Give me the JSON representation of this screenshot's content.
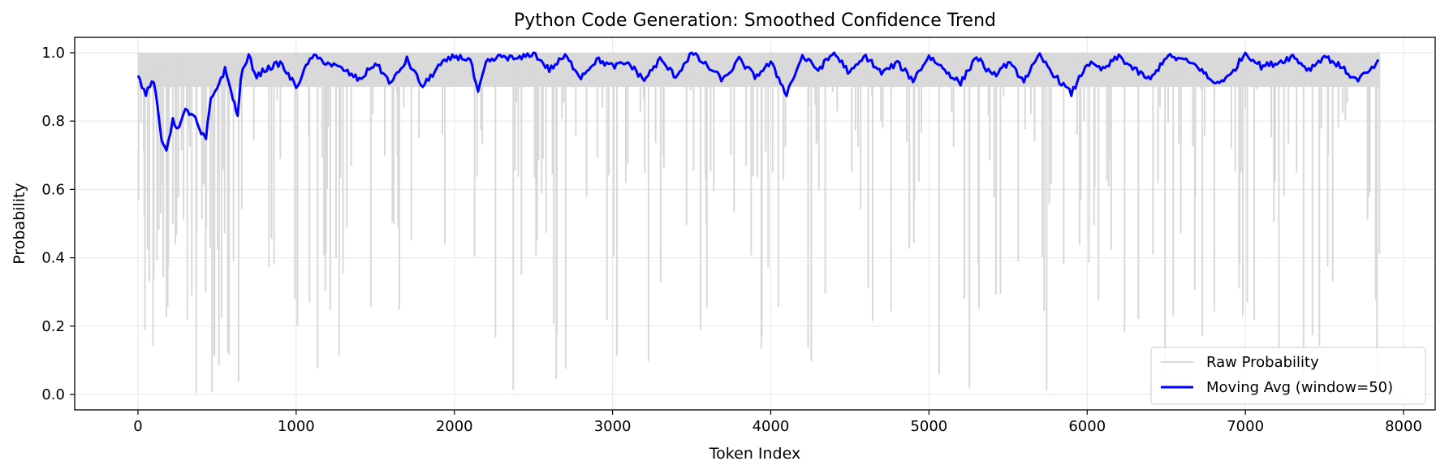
{
  "chart_data": {
    "type": "line",
    "title": "Python Code Generation: Smoothed Confidence Trend",
    "xlabel": "Token Index",
    "ylabel": "Probability",
    "xlim": [
      -400,
      8200
    ],
    "ylim": [
      -0.045,
      1.045
    ],
    "xticks": [
      0,
      1000,
      2000,
      3000,
      4000,
      5000,
      6000,
      7000,
      8000
    ],
    "xtick_labels": [
      "0",
      "1000",
      "2000",
      "3000",
      "4000",
      "5000",
      "6000",
      "7000",
      "8000"
    ],
    "yticks": [
      0.0,
      0.2,
      0.4,
      0.6,
      0.8,
      1.0
    ],
    "ytick_labels": [
      "0.0",
      "0.2",
      "0.4",
      "0.6",
      "0.8",
      "1.0"
    ],
    "grid": true,
    "legend_position": "lower-right",
    "num_tokens": 7850,
    "series": [
      {
        "name": "Raw Probability",
        "color": "#d9d9d9",
        "description_values": "per-token probabilities, mostly near 1.0 with frequent drops toward 0"
      },
      {
        "name": "Moving Avg (window=50)",
        "color": "#0000ff",
        "x": [
          0,
          50,
          100,
          150,
          180,
          220,
          260,
          300,
          350,
          400,
          430,
          460,
          500,
          550,
          600,
          630,
          650,
          700,
          750,
          800,
          900,
          1000,
          1100,
          1200,
          1300,
          1400,
          1500,
          1600,
          1700,
          1800,
          1900,
          2000,
          2100,
          2150,
          2200,
          2300,
          2400,
          2500,
          2600,
          2700,
          2800,
          2900,
          3000,
          3100,
          3200,
          3300,
          3400,
          3500,
          3600,
          3700,
          3800,
          3900,
          4000,
          4100,
          4200,
          4300,
          4400,
          4500,
          4600,
          4700,
          4800,
          4900,
          5000,
          5100,
          5200,
          5300,
          5400,
          5500,
          5600,
          5700,
          5800,
          5900,
          6000,
          6100,
          6200,
          6300,
          6400,
          6500,
          6600,
          6700,
          6800,
          6900,
          7000,
          7100,
          7200,
          7300,
          7400,
          7500,
          7600,
          7700,
          7800,
          7840
        ],
        "values": [
          0.93,
          0.88,
          0.92,
          0.74,
          0.72,
          0.8,
          0.78,
          0.83,
          0.82,
          0.76,
          0.75,
          0.86,
          0.9,
          0.95,
          0.87,
          0.81,
          0.93,
          0.99,
          0.93,
          0.95,
          0.97,
          0.9,
          0.99,
          0.97,
          0.95,
          0.92,
          0.97,
          0.91,
          0.98,
          0.9,
          0.96,
          0.99,
          0.98,
          0.88,
          0.97,
          0.99,
          0.98,
          1.0,
          0.95,
          0.99,
          0.93,
          0.98,
          0.96,
          0.97,
          0.92,
          0.98,
          0.93,
          1.0,
          0.96,
          0.92,
          0.98,
          0.93,
          0.97,
          0.88,
          0.99,
          0.95,
          1.0,
          0.94,
          0.99,
          0.94,
          0.97,
          0.92,
          0.99,
          0.95,
          0.91,
          0.99,
          0.93,
          0.97,
          0.92,
          0.99,
          0.93,
          0.88,
          0.97,
          0.95,
          0.99,
          0.95,
          0.92,
          0.99,
          0.98,
          0.96,
          0.91,
          0.93,
          1.0,
          0.96,
          0.97,
          0.99,
          0.95,
          0.99,
          0.96,
          0.92,
          0.95,
          0.98
        ]
      }
    ]
  }
}
